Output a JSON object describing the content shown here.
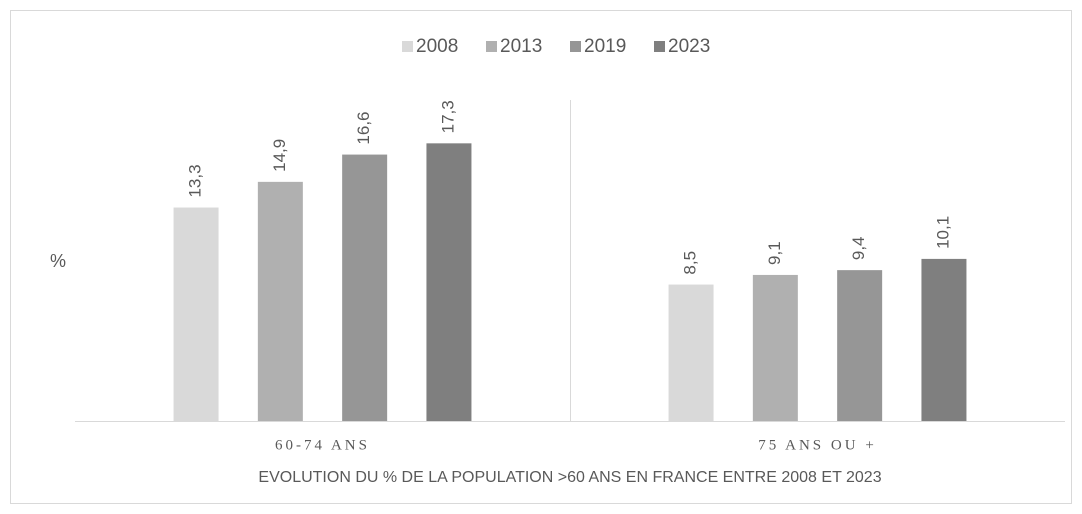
{
  "chart_data": {
    "type": "bar",
    "title": "EVOLUTION DU % DE LA POPULATION >60 ANS EN FRANCE ENTRE 2008 ET 2023",
    "y_label": "%",
    "categories": [
      "60-74 ANS",
      "75 ANS OU +"
    ],
    "series": [
      {
        "name": "2008",
        "color": "#d9d9d9",
        "values": [
          13.3,
          8.5
        ],
        "value_labels": [
          "13,3",
          "8,5"
        ]
      },
      {
        "name": "2013",
        "color": "#b0b0b0",
        "values": [
          14.9,
          9.1
        ],
        "value_labels": [
          "14,9",
          "9,1"
        ]
      },
      {
        "name": "2019",
        "color": "#969696",
        "values": [
          16.6,
          9.4
        ],
        "value_labels": [
          "16,6",
          "9,4"
        ]
      },
      {
        "name": "2023",
        "color": "#7f7f7f",
        "values": [
          17.3,
          10.1
        ],
        "value_labels": [
          "17,3",
          "10,1"
        ]
      }
    ],
    "ylim": [
      0,
      20
    ],
    "legend": "top"
  }
}
